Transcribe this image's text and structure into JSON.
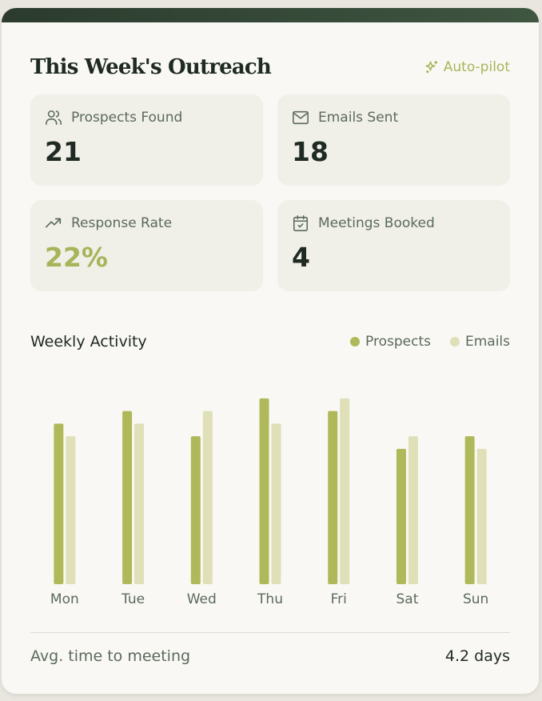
{
  "header": {
    "title": "This Week's Outreach",
    "autopilot_label": "Auto-pilot",
    "autopilot_icon": "sparkles-icon"
  },
  "stats": [
    {
      "label": "Prospects Found",
      "value": "21",
      "icon": "users-icon"
    },
    {
      "label": "Emails Sent",
      "value": "18",
      "icon": "mail-icon"
    },
    {
      "label": "Response Rate",
      "value": "22%",
      "icon": "trending-up-icon"
    },
    {
      "label": "Meetings Booked",
      "value": "4",
      "icon": "calendar-check-icon"
    }
  ],
  "activity": {
    "title": "Weekly Activity",
    "legend": [
      "Prospects",
      "Emails"
    ]
  },
  "chart_data": {
    "type": "bar",
    "categories": [
      "Mon",
      "Tue",
      "Wed",
      "Thu",
      "Fri",
      "Sat",
      "Sun"
    ],
    "series": [
      {
        "name": "Prospects",
        "values": [
          12.75,
          13.75,
          11.75,
          14.75,
          13.75,
          10.75,
          11.75
        ]
      },
      {
        "name": "Emails",
        "values": [
          11.75,
          12.75,
          13.75,
          12.75,
          14.75,
          11.75,
          10.75
        ]
      }
    ],
    "ylim": [
      0,
      15
    ],
    "grid": false,
    "legend": "top-right",
    "colors": {
      "Prospects": "#b0b95a",
      "Emails": "#dfe0b8"
    }
  },
  "footer": {
    "label": "Avg. time to meeting",
    "value": "4.2 days"
  },
  "colors": {
    "background": "#f9f8f4",
    "card": "#f0efe8",
    "dark": "#1f2a22",
    "accent": "#a8b45a",
    "muted": "#5b6a5c",
    "header_bar": "#2b3b2e"
  }
}
